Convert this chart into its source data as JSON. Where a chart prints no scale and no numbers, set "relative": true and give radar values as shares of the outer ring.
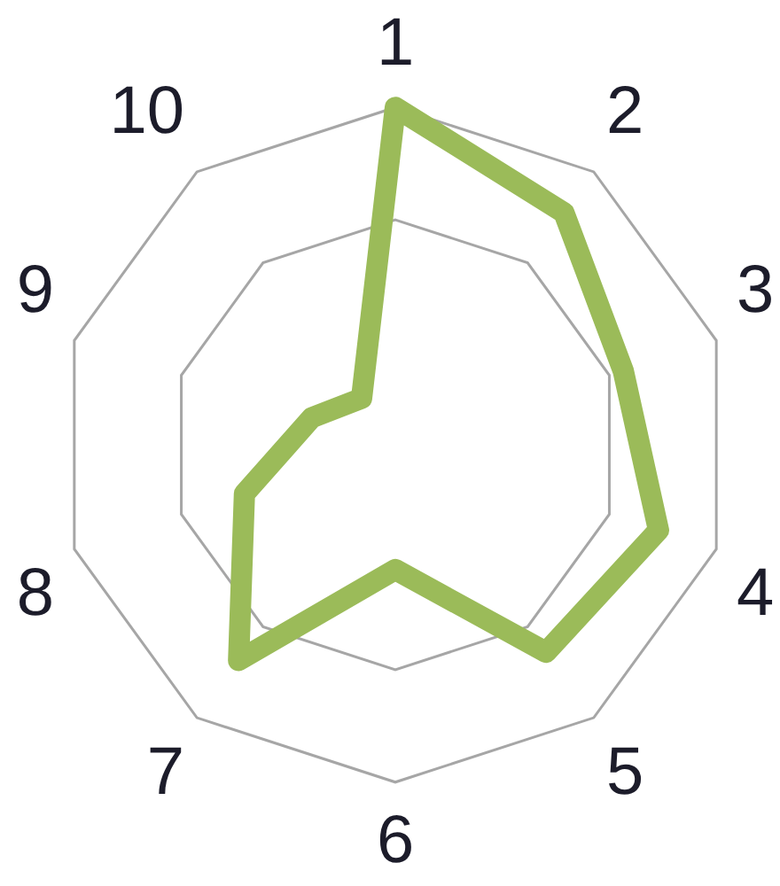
{
  "chart_data": {
    "type": "radar",
    "categories": [
      "1",
      "2",
      "3",
      "4",
      "5",
      "6",
      "7",
      "8",
      "9",
      "10"
    ],
    "relative": true,
    "grid": true,
    "series": [
      {
        "color": "#9bbb59",
        "values": [
          1,
          0.85,
          0.71,
          0.82,
          0.76,
          0.37,
          0.79,
          0.47,
          0.26,
          0.17
        ]
      }
    ]
  }
}
